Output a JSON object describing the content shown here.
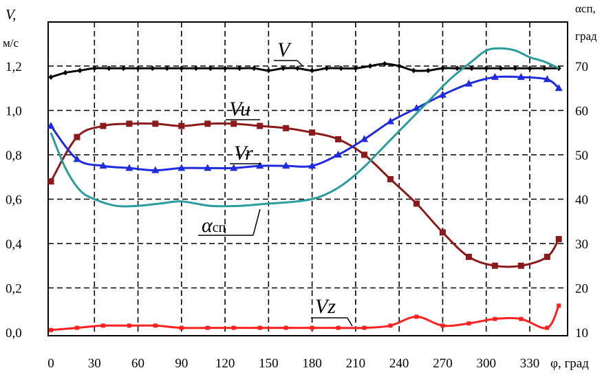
{
  "chart_data": {
    "type": "line",
    "y_left_label": "V,",
    "y_left_unit": "м/с",
    "y_right_label": "αсп,",
    "y_right_unit": "град",
    "x_label": "φ, град",
    "x_ticks": [
      "0",
      "30",
      "60",
      "90",
      "120",
      "150",
      "180",
      "210",
      "240",
      "270",
      "300",
      "330"
    ],
    "y_left_ticks": [
      "0,0",
      "0,2",
      "0,4",
      "0,6",
      "0,8",
      "1,0",
      "1,2"
    ],
    "y_right_ticks": [
      "10",
      "20",
      "30",
      "40",
      "50",
      "60",
      "70"
    ],
    "xlim": [
      0,
      350
    ],
    "ylim_left": [
      0,
      1.3
    ],
    "ylim_right": [
      10,
      75
    ],
    "grid": true,
    "series": [
      {
        "name": "V",
        "axis": "left",
        "color": "#000000",
        "marker": "diamond",
        "x": [
          0,
          10,
          20,
          30,
          40,
          50,
          60,
          70,
          80,
          90,
          100,
          110,
          120,
          130,
          140,
          150,
          160,
          170,
          180,
          190,
          200,
          210,
          220,
          230,
          240,
          250,
          260,
          270,
          280,
          290,
          300,
          310,
          320,
          330,
          340,
          350
        ],
        "y": [
          1.15,
          1.17,
          1.18,
          1.19,
          1.19,
          1.19,
          1.19,
          1.19,
          1.19,
          1.19,
          1.19,
          1.19,
          1.19,
          1.19,
          1.19,
          1.18,
          1.19,
          1.19,
          1.18,
          1.19,
          1.19,
          1.19,
          1.2,
          1.21,
          1.2,
          1.18,
          1.18,
          1.19,
          1.19,
          1.19,
          1.19,
          1.19,
          1.19,
          1.19,
          1.19,
          1.19
        ]
      },
      {
        "name": "Vu",
        "axis": "left",
        "color": "#8b1a1a",
        "marker": "square",
        "x": [
          0,
          18,
          36,
          54,
          72,
          90,
          108,
          126,
          144,
          162,
          180,
          198,
          216,
          234,
          252,
          270,
          288,
          306,
          324,
          342,
          350
        ],
        "y": [
          0.68,
          0.88,
          0.93,
          0.94,
          0.94,
          0.93,
          0.94,
          0.94,
          0.93,
          0.92,
          0.9,
          0.87,
          0.8,
          0.69,
          0.58,
          0.45,
          0.34,
          0.3,
          0.3,
          0.34,
          0.42
        ]
      },
      {
        "name": "Vr",
        "axis": "left",
        "color": "#1f2bdf",
        "marker": "triangle",
        "x": [
          0,
          18,
          36,
          54,
          72,
          90,
          108,
          126,
          144,
          162,
          180,
          198,
          216,
          234,
          252,
          270,
          288,
          306,
          324,
          342,
          350
        ],
        "y": [
          0.93,
          0.78,
          0.75,
          0.74,
          0.73,
          0.74,
          0.74,
          0.74,
          0.75,
          0.75,
          0.75,
          0.8,
          0.87,
          0.95,
          1.01,
          1.07,
          1.12,
          1.15,
          1.15,
          1.14,
          1.1
        ]
      },
      {
        "name": "αсп",
        "axis": "right",
        "color": "#2a9c9c",
        "marker": "none",
        "x": [
          0,
          10,
          20,
          30,
          45,
          60,
          75,
          90,
          110,
          130,
          150,
          170,
          185,
          200,
          215,
          230,
          245,
          260,
          275,
          290,
          300,
          310,
          320,
          330,
          340,
          350
        ],
        "y": [
          55,
          47,
          42,
          40,
          38.5,
          38.5,
          39,
          39.5,
          38.5,
          38.5,
          39,
          39.5,
          40.5,
          43,
          47,
          52,
          57,
          62,
          67,
          71,
          73.5,
          74,
          73.5,
          72,
          71,
          69.5
        ]
      },
      {
        "name": "Vz",
        "axis": "left",
        "color": "#ff2020",
        "marker": "dot",
        "x": [
          0,
          18,
          36,
          54,
          72,
          90,
          108,
          126,
          144,
          162,
          180,
          198,
          216,
          234,
          252,
          270,
          288,
          306,
          324,
          342,
          350
        ],
        "y": [
          0.01,
          0.02,
          0.03,
          0.03,
          0.03,
          0.02,
          0.02,
          0.02,
          0.02,
          0.02,
          0.02,
          0.02,
          0.02,
          0.03,
          0.07,
          0.03,
          0.04,
          0.06,
          0.06,
          0.02,
          0.12
        ]
      }
    ],
    "annotations": [
      {
        "text": "V",
        "series": "V"
      },
      {
        "text": "Vu",
        "series": "Vu"
      },
      {
        "text": "Vr",
        "series": "Vr"
      },
      {
        "text": "α",
        "sub": "сп",
        "series": "αсп"
      },
      {
        "text": "Vz",
        "series": "Vz"
      }
    ]
  }
}
